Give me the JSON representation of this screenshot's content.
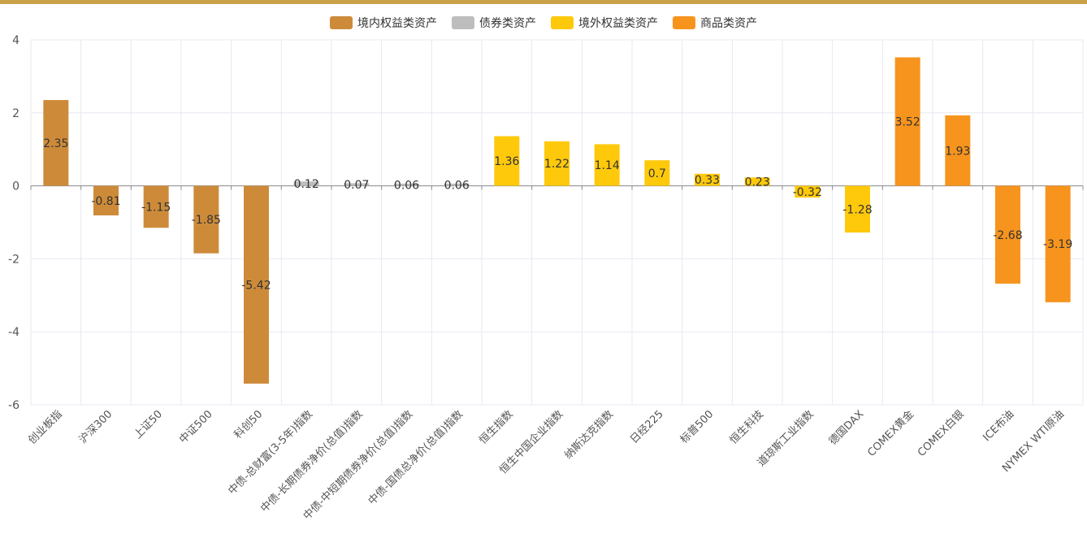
{
  "legend": [
    {
      "name": "境内权益类资产",
      "color": "#cd8b3a"
    },
    {
      "name": "债券类资产",
      "color": "#bdbdbd"
    },
    {
      "name": "境外权益类资产",
      "color": "#ffc90b"
    },
    {
      "name": "商品类资产",
      "color": "#f7941d"
    }
  ],
  "chart_data": {
    "type": "bar",
    "title": "",
    "xlabel": "",
    "ylabel": "",
    "ylim": [
      -6,
      4
    ],
    "yticks": [
      -6,
      -4,
      -2,
      0,
      2,
      4
    ],
    "grid": true,
    "legend_position": "top-center",
    "categories": [
      "创业板指",
      "沪深300",
      "上证50",
      "中证500",
      "科创50",
      "中债-总财富(3-5年)指数",
      "中债-长期债券净价(总值)指数",
      "中债-中短期债券净价(总值)指数",
      "中债-国债总净价(总值)指数",
      "恒生指数",
      "恒生中国企业指数",
      "纳斯达克指数",
      "日经225",
      "标普500",
      "恒生科技",
      "道琼斯工业指数",
      "德国DAX",
      "COMEX黄金",
      "COMEX白银",
      "ICE布油",
      "NYMEX WTI原油"
    ],
    "values": [
      2.35,
      -0.81,
      -1.15,
      -1.85,
      -5.42,
      0.12,
      0.07,
      0.06,
      0.06,
      1.36,
      1.22,
      1.14,
      0.7,
      0.33,
      0.23,
      -0.32,
      -1.28,
      3.52,
      1.93,
      -2.68,
      -3.19
    ],
    "value_labels": [
      "2.35",
      "-0.81",
      "-1.15",
      "-1.85",
      "-5.42",
      "0.12",
      "0.07",
      "0.06",
      "0.06",
      "1.36",
      "1.22",
      "1.14",
      "0.7",
      "0.33",
      "0.23",
      "-0.32",
      "-1.28",
      "3.52",
      "1.93",
      "-2.68",
      "-3.19"
    ],
    "series_index": [
      0,
      0,
      0,
      0,
      0,
      1,
      1,
      1,
      1,
      2,
      2,
      2,
      2,
      2,
      2,
      2,
      2,
      3,
      3,
      3,
      3
    ]
  }
}
